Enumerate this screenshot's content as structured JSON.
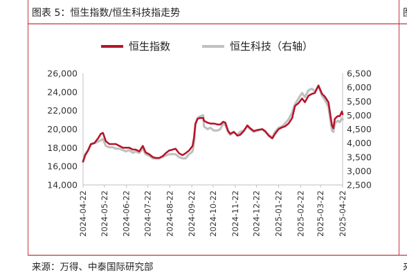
{
  "figure": {
    "title": "图表 5：恒生指数/恒生科技指走势",
    "next_title_fragment": "图",
    "source": "来源：万得、中泰国际研究部",
    "next_source_fragment": "来"
  },
  "chart_data": {
    "type": "line",
    "title": "",
    "xlabel": "",
    "ylabel_left": "",
    "ylabel_right": "",
    "legend_position": "top",
    "grid": false,
    "x_ticks": [
      "2024-04-22",
      "2024-05-22",
      "2024-06-22",
      "2024-07-22",
      "2024-08-22",
      "2024-09-22",
      "2024-10-22",
      "2024-11-22",
      "2024-12-22",
      "2025-01-22",
      "2025-02-22",
      "2025-03-22",
      "2025-04-22"
    ],
    "x_range": [
      "2024-04-22",
      "2025-04-22"
    ],
    "y_left": {
      "min": 14000,
      "max": 26000,
      "ticks": [
        14000,
        16000,
        18000,
        20000,
        22000,
        24000,
        26000
      ],
      "tick_labels": [
        "14,000",
        "16,000",
        "18,000",
        "20,000",
        "22,000",
        "24,000",
        "26,000"
      ]
    },
    "y_right": {
      "min": 2500,
      "max": 6500,
      "ticks": [
        2500,
        3000,
        3500,
        4000,
        4500,
        5000,
        5500,
        6000,
        6500
      ],
      "tick_labels": [
        "2,500",
        "3,000",
        "3,500",
        "4,000",
        "4,500",
        "5,000",
        "5,500",
        "6,000",
        "6,500"
      ]
    },
    "series": [
      {
        "name": "恒生指数",
        "axis": "left",
        "color": "#b5152b",
        "points": [
          [
            "2024-04-22",
            16500
          ],
          [
            "2024-04-25",
            17200
          ],
          [
            "2024-04-29",
            17700
          ],
          [
            "2024-05-03",
            18400
          ],
          [
            "2024-05-08",
            18500
          ],
          [
            "2024-05-13",
            19000
          ],
          [
            "2024-05-17",
            19500
          ],
          [
            "2024-05-20",
            19600
          ],
          [
            "2024-05-24",
            18700
          ],
          [
            "2024-05-29",
            18400
          ],
          [
            "2024-06-03",
            18400
          ],
          [
            "2024-06-07",
            18400
          ],
          [
            "2024-06-12",
            18200
          ],
          [
            "2024-06-17",
            18000
          ],
          [
            "2024-06-21",
            18000
          ],
          [
            "2024-06-26",
            18000
          ],
          [
            "2024-07-01",
            17800
          ],
          [
            "2024-07-05",
            17800
          ],
          [
            "2024-07-10",
            17600
          ],
          [
            "2024-07-15",
            18200
          ],
          [
            "2024-07-19",
            17500
          ],
          [
            "2024-07-24",
            17300
          ],
          [
            "2024-07-29",
            17000
          ],
          [
            "2024-08-02",
            16900
          ],
          [
            "2024-08-07",
            16900
          ],
          [
            "2024-08-12",
            17100
          ],
          [
            "2024-08-16",
            17400
          ],
          [
            "2024-08-21",
            17700
          ],
          [
            "2024-08-26",
            17800
          ],
          [
            "2024-08-30",
            17900
          ],
          [
            "2024-09-04",
            17400
          ],
          [
            "2024-09-09",
            17200
          ],
          [
            "2024-09-13",
            17400
          ],
          [
            "2024-09-18",
            17700
          ],
          [
            "2024-09-23",
            18200
          ],
          [
            "2024-09-25",
            19100
          ],
          [
            "2024-09-27",
            20600
          ],
          [
            "2024-09-30",
            21100
          ],
          [
            "2024-10-03",
            21200
          ],
          [
            "2024-10-08",
            21200
          ],
          [
            "2024-10-09",
            20900
          ],
          [
            "2024-10-14",
            20700
          ],
          [
            "2024-10-18",
            20600
          ],
          [
            "2024-10-23",
            20600
          ],
          [
            "2024-10-28",
            20500
          ],
          [
            "2024-11-01",
            20500
          ],
          [
            "2024-11-05",
            20800
          ],
          [
            "2024-11-08",
            20700
          ],
          [
            "2024-11-12",
            19800
          ],
          [
            "2024-11-15",
            19500
          ],
          [
            "2024-11-20",
            19700
          ],
          [
            "2024-11-25",
            19300
          ],
          [
            "2024-11-29",
            19400
          ],
          [
            "2024-12-04",
            19800
          ],
          [
            "2024-12-09",
            20400
          ],
          [
            "2024-12-13",
            20100
          ],
          [
            "2024-12-18",
            19800
          ],
          [
            "2024-12-23",
            19900
          ],
          [
            "2024-12-30",
            20000
          ],
          [
            "2025-01-03",
            19800
          ],
          [
            "2025-01-08",
            19300
          ],
          [
            "2025-01-13",
            19000
          ],
          [
            "2025-01-17",
            19500
          ],
          [
            "2025-01-22",
            20000
          ],
          [
            "2025-01-27",
            20200
          ],
          [
            "2025-01-31",
            20300
          ],
          [
            "2025-02-05",
            20600
          ],
          [
            "2025-02-10",
            21200
          ],
          [
            "2025-02-14",
            22500
          ],
          [
            "2025-02-19",
            22800
          ],
          [
            "2025-02-24",
            23300
          ],
          [
            "2025-02-28",
            22900
          ],
          [
            "2025-03-05",
            23600
          ],
          [
            "2025-03-10",
            23800
          ],
          [
            "2025-03-14",
            23900
          ],
          [
            "2025-03-19",
            24700
          ],
          [
            "2025-03-24",
            23800
          ],
          [
            "2025-03-28",
            23500
          ],
          [
            "2025-04-02",
            22900
          ],
          [
            "2025-04-07",
            20400
          ],
          [
            "2025-04-09",
            20100
          ],
          [
            "2025-04-11",
            21100
          ],
          [
            "2025-04-15",
            21400
          ],
          [
            "2025-04-18",
            21400
          ],
          [
            "2025-04-21",
            21900
          ],
          [
            "2025-04-22",
            21600
          ]
        ]
      },
      {
        "name": "恒生科技（右轴）",
        "axis": "right",
        "color": "#c0c0c0",
        "points": [
          [
            "2024-04-22",
            3350
          ],
          [
            "2024-04-25",
            3600
          ],
          [
            "2024-04-29",
            3750
          ],
          [
            "2024-05-03",
            3950
          ],
          [
            "2024-05-08",
            4000
          ],
          [
            "2024-05-13",
            4050
          ],
          [
            "2024-05-17",
            4100
          ],
          [
            "2024-05-20",
            4150
          ],
          [
            "2024-05-24",
            3900
          ],
          [
            "2024-05-29",
            3850
          ],
          [
            "2024-06-03",
            3850
          ],
          [
            "2024-06-07",
            3800
          ],
          [
            "2024-06-12",
            3800
          ],
          [
            "2024-06-17",
            3750
          ],
          [
            "2024-06-21",
            3700
          ],
          [
            "2024-06-26",
            3750
          ],
          [
            "2024-07-01",
            3650
          ],
          [
            "2024-07-05",
            3700
          ],
          [
            "2024-07-10",
            3650
          ],
          [
            "2024-07-15",
            3800
          ],
          [
            "2024-07-19",
            3600
          ],
          [
            "2024-07-24",
            3550
          ],
          [
            "2024-07-29",
            3450
          ],
          [
            "2024-08-02",
            3450
          ],
          [
            "2024-08-07",
            3450
          ],
          [
            "2024-08-12",
            3500
          ],
          [
            "2024-08-16",
            3550
          ],
          [
            "2024-08-21",
            3600
          ],
          [
            "2024-08-26",
            3600
          ],
          [
            "2024-08-30",
            3600
          ],
          [
            "2024-09-04",
            3500
          ],
          [
            "2024-09-09",
            3450
          ],
          [
            "2024-09-13",
            3450
          ],
          [
            "2024-09-18",
            3600
          ],
          [
            "2024-09-23",
            3700
          ],
          [
            "2024-09-25",
            4000
          ],
          [
            "2024-09-27",
            4650
          ],
          [
            "2024-09-30",
            4900
          ],
          [
            "2024-10-03",
            4950
          ],
          [
            "2024-10-08",
            5000
          ],
          [
            "2024-10-09",
            4600
          ],
          [
            "2024-10-14",
            4500
          ],
          [
            "2024-10-18",
            4550
          ],
          [
            "2024-10-23",
            4450
          ],
          [
            "2024-10-28",
            4450
          ],
          [
            "2024-11-01",
            4500
          ],
          [
            "2024-11-05",
            4700
          ],
          [
            "2024-11-08",
            4650
          ],
          [
            "2024-11-12",
            4400
          ],
          [
            "2024-11-15",
            4300
          ],
          [
            "2024-11-20",
            4400
          ],
          [
            "2024-11-25",
            4300
          ],
          [
            "2024-11-29",
            4400
          ],
          [
            "2024-12-04",
            4450
          ],
          [
            "2024-12-09",
            4600
          ],
          [
            "2024-12-13",
            4500
          ],
          [
            "2024-12-18",
            4400
          ],
          [
            "2024-12-23",
            4450
          ],
          [
            "2024-12-30",
            4500
          ],
          [
            "2025-01-03",
            4400
          ],
          [
            "2025-01-08",
            4300
          ],
          [
            "2025-01-13",
            4200
          ],
          [
            "2025-01-17",
            4400
          ],
          [
            "2025-01-22",
            4550
          ],
          [
            "2025-01-27",
            4600
          ],
          [
            "2025-01-31",
            4700
          ],
          [
            "2025-02-05",
            4850
          ],
          [
            "2025-02-10",
            5100
          ],
          [
            "2025-02-14",
            5400
          ],
          [
            "2025-02-19",
            5600
          ],
          [
            "2025-02-24",
            5800
          ],
          [
            "2025-02-28",
            5650
          ],
          [
            "2025-03-05",
            5900
          ],
          [
            "2025-03-10",
            5950
          ],
          [
            "2025-03-14",
            5850
          ],
          [
            "2025-03-19",
            6050
          ],
          [
            "2025-03-24",
            5700
          ],
          [
            "2025-03-28",
            5550
          ],
          [
            "2025-04-02",
            5300
          ],
          [
            "2025-04-07",
            4450
          ],
          [
            "2025-04-09",
            4400
          ],
          [
            "2025-04-11",
            4700
          ],
          [
            "2025-04-15",
            4800
          ],
          [
            "2025-04-18",
            4750
          ],
          [
            "2025-04-21",
            4900
          ],
          [
            "2025-04-22",
            4850
          ]
        ]
      }
    ]
  }
}
